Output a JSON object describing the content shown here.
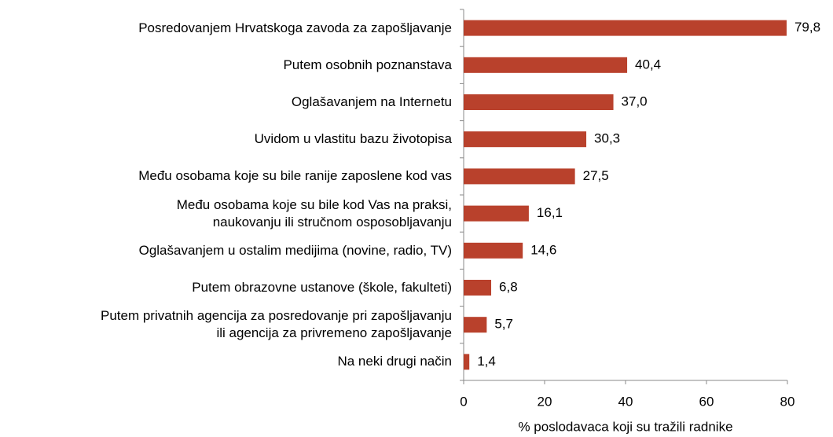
{
  "chart_data": {
    "type": "hbar",
    "categories": [
      "Posredovanjem Hrvatskoga zavoda za zapošljavanje",
      "Putem osobnih poznanstava",
      "Oglašavanjem na Internetu",
      "Uvidom u vlastitu bazu životopisa",
      "Među osobama koje su bile ranije zaposlene kod vas",
      "Među osobama koje su bile kod Vas na praksi,\nnaukovanju ili stručnom osposobljavanju",
      "Oglašavanjem u ostalim medijima (novine, radio, TV)",
      "Putem obrazovne ustanove (škole, fakulteti)",
      "Putem privatnih agencija za posredovanje pri zapošljavanju\nili agencija za privremeno zapošljavanje",
      "Na neki drugi način"
    ],
    "values": [
      79.8,
      40.4,
      37.0,
      30.3,
      27.5,
      16.1,
      14.6,
      6.8,
      5.7,
      1.4
    ],
    "value_labels": [
      "79,8",
      "40,4",
      "37,0",
      "30,3",
      "27,5",
      "16,1",
      "14,6",
      "6,8",
      "5,7",
      "1,4"
    ],
    "color": "#b9412c",
    "xlim": [
      0,
      80
    ],
    "xticks": [
      0,
      20,
      40,
      60,
      80
    ],
    "xlabel": "% poslodavaca koji su tražili radnike"
  }
}
